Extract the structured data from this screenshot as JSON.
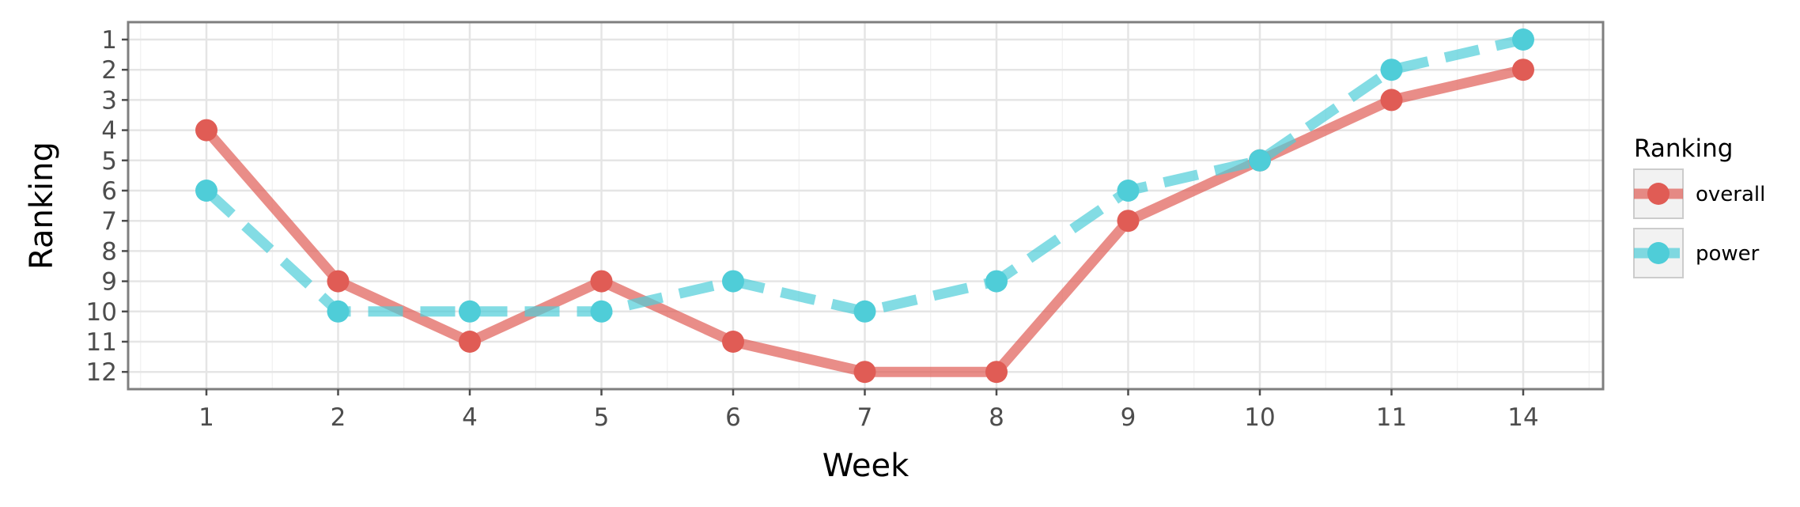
{
  "chart_data": {
    "type": "line",
    "xlabel": "Week",
    "ylabel": "Ranking",
    "categories": [
      "1",
      "2",
      "4",
      "5",
      "6",
      "7",
      "8",
      "9",
      "10",
      "11",
      "14"
    ],
    "y_ticks": [
      "1",
      "2",
      "3",
      "4",
      "5",
      "6",
      "7",
      "8",
      "9",
      "10",
      "11",
      "12"
    ],
    "ylim": [
      1,
      12
    ],
    "y_reversed": true,
    "grid": true,
    "legend": {
      "title": "Ranking",
      "placement": "right"
    },
    "series": [
      {
        "name": "overall",
        "color": "#e05c55",
        "line_style": "solid",
        "values": [
          4,
          9,
          11,
          9,
          11,
          12,
          12,
          7,
          5,
          3,
          2
        ]
      },
      {
        "name": "power",
        "color": "#4fcdd8",
        "line_style": "dashed",
        "values": [
          6,
          10,
          10,
          10,
          9,
          10,
          9,
          6,
          5,
          2,
          1
        ]
      }
    ]
  }
}
